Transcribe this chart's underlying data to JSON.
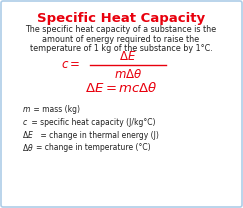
{
  "title": "Specific Heat Capacity",
  "title_color": "#e8000d",
  "desc_line1": "The specific heat capacity of a substance is the",
  "desc_line2": "amount of energy required to raise the",
  "desc_line3": "temperature of 1 kg of the substance by 1°C.",
  "formula_color": "#e8000d",
  "bg_color": "#ffffff",
  "border_color": "#aecde8",
  "text_color": "#222222",
  "title_fontsize": 9.5,
  "desc_fontsize": 5.8,
  "formula_fontsize": 8.5,
  "legend_fontsize": 5.5
}
